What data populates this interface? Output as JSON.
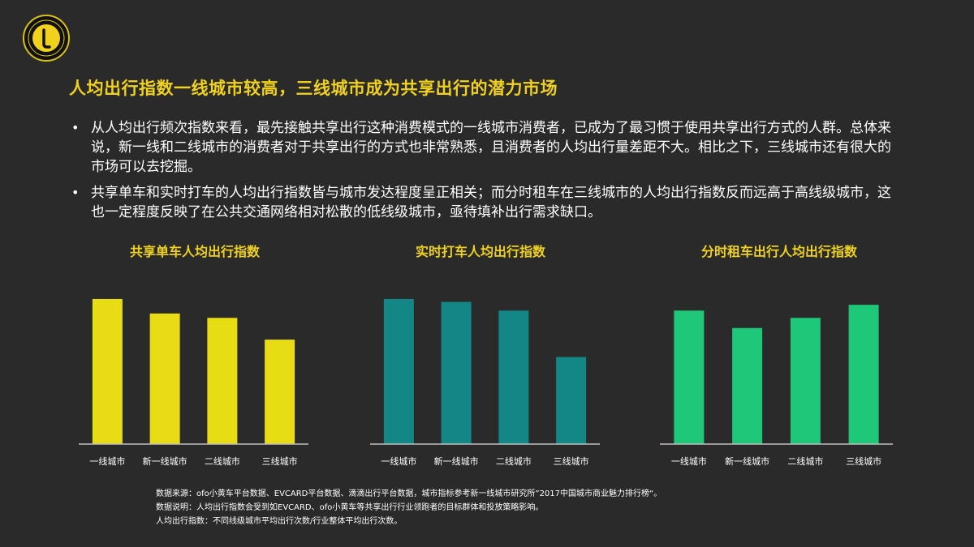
{
  "slide": {
    "title": "人均出行指数一线城市较高，三线城市成为共享出行的潜力市场",
    "bullets": [
      "从人均出行频次指数来看，最先接触共享出行这种消费模式的一线城市消费者，已成为了最习惯于使用共享出行方式的人群。总体来说，新一线和二线城市的消费者对于共享出行的方式也非常熟悉，且消费者的人均出行量差距不大。相比之下，三线城市还有很大的市场可以去挖掘。",
      "共享单车和实时打车的人均出行指数皆与城市发达程度呈正相关；而分时租车在三线城市的人均出行指数反而远高于高线级城市，这也一定程度反映了在公共交通网络相对松散的低线级城市，亟待填补出行需求缺口。"
    ],
    "bullet_marker": "•",
    "notes": [
      "数据来源：ofo小黄车平台数据、EVCARD平台数据、滴滴出行平台数据，城市指标参考新一线城市研究所”2017中国城市商业魅力排行榜“。",
      "数据说明：人均出行指数会受到如EVCARD、ofo小黄车等共享出行行业领跑者的目标群体和投放策略影响。",
      "人均出行指数：不同线级城市平均出行次数/行业整体平均出行次数。"
    ],
    "logo_icon": "yellow-circle-l-logo-icon"
  },
  "chart_data": [
    {
      "type": "bar",
      "title": "共享单车人均出行指数",
      "categories": [
        "一线城市",
        "新一线城市",
        "二线城市",
        "三线城市"
      ],
      "values": [
        100,
        90,
        87,
        72
      ],
      "ylim": [
        0,
        105
      ],
      "color": "#e8dc15",
      "grid": false,
      "legend": "none"
    },
    {
      "type": "bar",
      "title": "实时打车人均出行指数",
      "categories": [
        "一线城市",
        "新一线城市",
        "二线城市",
        "三线城市"
      ],
      "values": [
        100,
        98,
        92,
        60
      ],
      "ylim": [
        0,
        105
      ],
      "color": "#138686",
      "grid": false,
      "legend": "none"
    },
    {
      "type": "bar",
      "title": "分时租车出行人均出行指数",
      "categories": [
        "一线城市",
        "新一线城市",
        "二线城市",
        "三线城市"
      ],
      "values": [
        92,
        80,
        87,
        96
      ],
      "ylim": [
        0,
        105
      ],
      "color": "#1ec878",
      "grid": false,
      "legend": "none"
    }
  ]
}
